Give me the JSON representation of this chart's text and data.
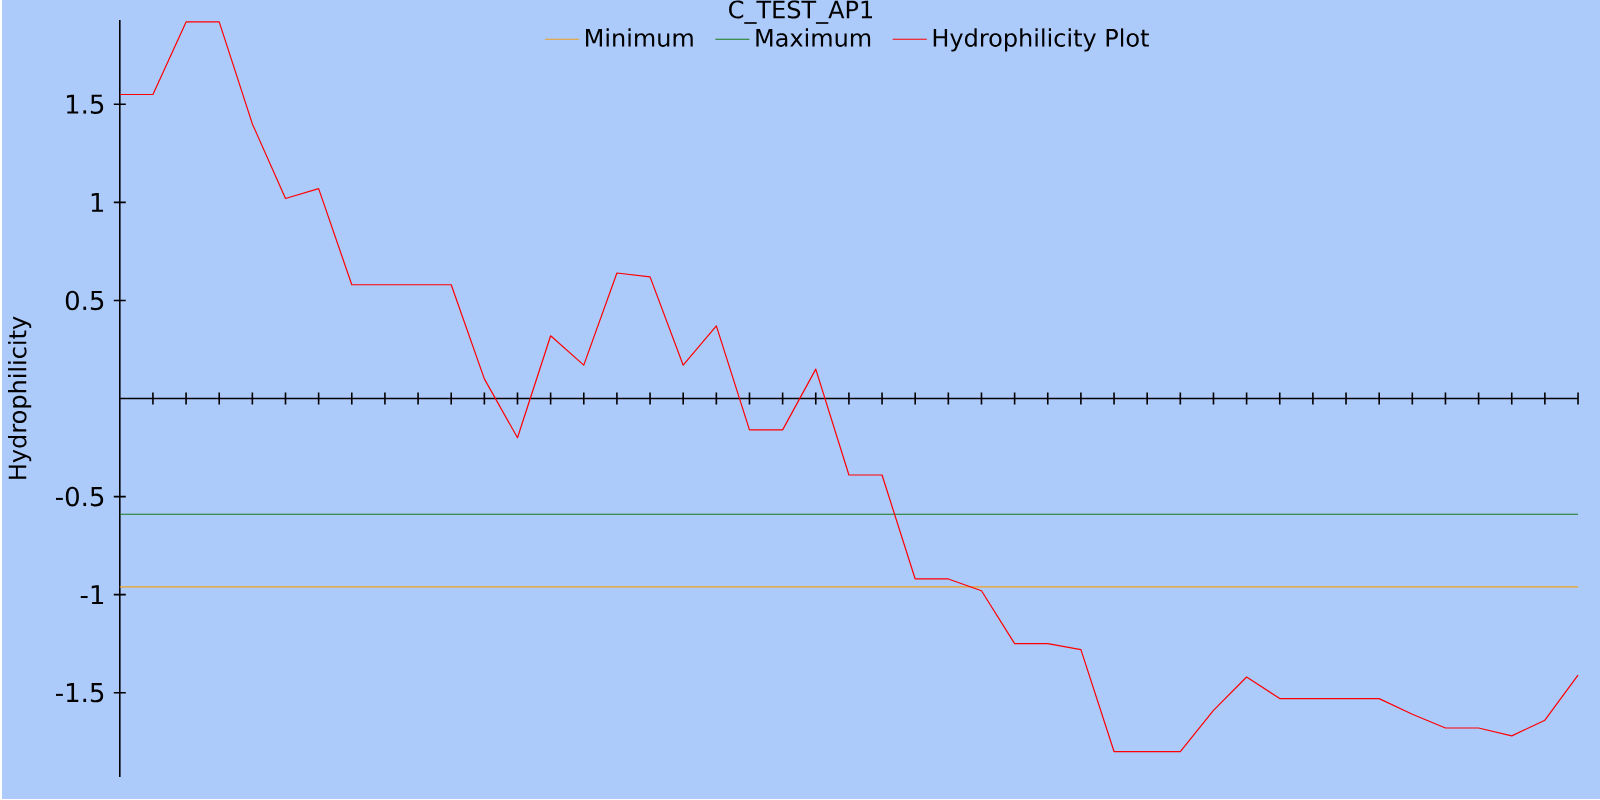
{
  "chart_data": {
    "type": "line",
    "title": "C_TEST_AP1",
    "ylabel": "Hydrophilicity",
    "categories": [
      null,
      null,
      null,
      null,
      null,
      null,
      null,
      null,
      null,
      null,
      null,
      null,
      null,
      null,
      null,
      null,
      null,
      null,
      null,
      null,
      null,
      null,
      null,
      null,
      null,
      null,
      null,
      null,
      null,
      null,
      null,
      null,
      null,
      null,
      null,
      null,
      null,
      null,
      null,
      null,
      null,
      null,
      null,
      null,
      null
    ],
    "series": [
      {
        "name": "Minimum",
        "color": "#f0a020",
        "values": [
          -0.96,
          -0.96,
          -0.96,
          -0.96,
          -0.96,
          -0.96,
          -0.96,
          -0.96,
          -0.96,
          -0.96,
          -0.96,
          -0.96,
          -0.96,
          -0.96,
          -0.96,
          -0.96,
          -0.96,
          -0.96,
          -0.96,
          -0.96,
          -0.96,
          -0.96,
          -0.96,
          -0.96,
          -0.96,
          -0.96,
          -0.96,
          -0.96,
          -0.96,
          -0.96,
          -0.96,
          -0.96,
          -0.96,
          -0.96,
          -0.96,
          -0.96,
          -0.96,
          -0.96,
          -0.96,
          -0.96,
          -0.96,
          -0.96,
          -0.96,
          -0.96,
          -0.96
        ]
      },
      {
        "name": "Maximum",
        "color": "#1a7a1a",
        "values": [
          -0.59,
          -0.59,
          -0.59,
          -0.59,
          -0.59,
          -0.59,
          -0.59,
          -0.59,
          -0.59,
          -0.59,
          -0.59,
          -0.59,
          -0.59,
          -0.59,
          -0.59,
          -0.59,
          -0.59,
          -0.59,
          -0.59,
          -0.59,
          -0.59,
          -0.59,
          -0.59,
          -0.59,
          -0.59,
          -0.59,
          -0.59,
          -0.59,
          -0.59,
          -0.59,
          -0.59,
          -0.59,
          -0.59,
          -0.59,
          -0.59,
          -0.59,
          -0.59,
          -0.59,
          -0.59,
          -0.59,
          -0.59,
          -0.59,
          -0.59,
          -0.59,
          -0.59
        ]
      },
      {
        "name": "Hydrophilicity Plot",
        "color": "#ff0000",
        "values": [
          1.55,
          1.55,
          1.92,
          1.92,
          1.4,
          1.02,
          1.07,
          0.58,
          0.58,
          0.58,
          0.58,
          0.1,
          -0.2,
          0.32,
          0.17,
          0.64,
          0.62,
          0.17,
          0.37,
          -0.16,
          -0.16,
          0.15,
          -0.39,
          -0.39,
          -0.92,
          -0.92,
          -0.98,
          -1.25,
          -1.25,
          -1.28,
          -1.8,
          -1.8,
          -1.8,
          -1.59,
          -1.42,
          -1.53,
          -1.53,
          -1.53,
          -1.53,
          -1.61,
          -1.68,
          -1.68,
          -1.72,
          -1.64,
          -1.41
        ]
      }
    ],
    "ylim": [
      -1.93,
      1.93
    ],
    "yticks": [
      1.5,
      1,
      0.5,
      -0.5,
      -1,
      -1.5
    ],
    "tick_labels": "y",
    "legend": "top",
    "grid": false,
    "marker": "none",
    "line_style": "solid"
  }
}
